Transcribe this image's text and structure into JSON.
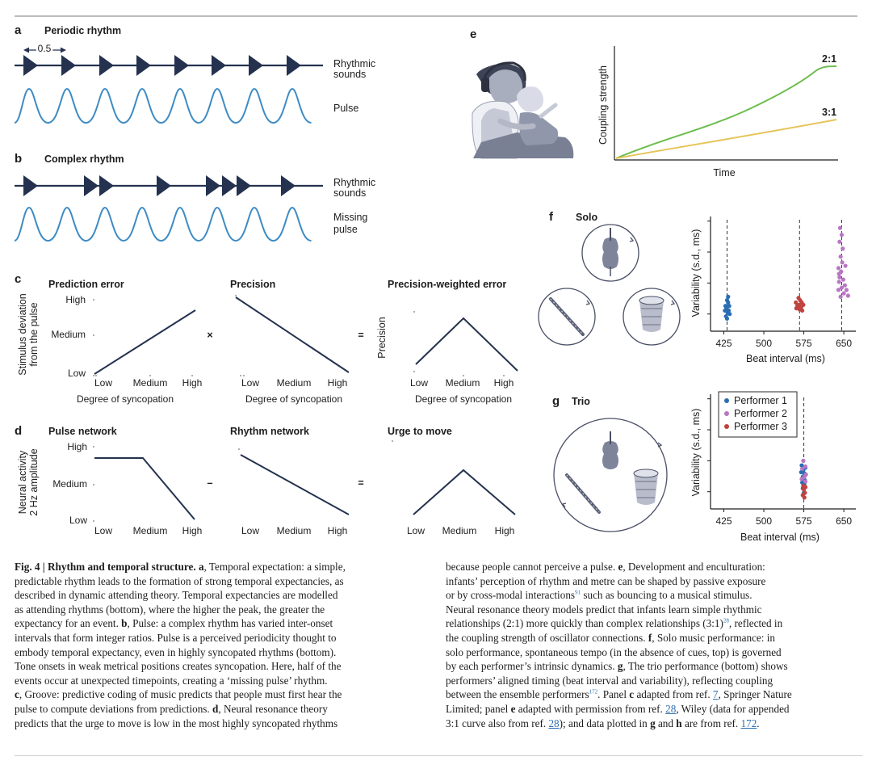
{
  "panels": {
    "a": {
      "letter": "a",
      "title": "Periodic rhythm",
      "interval": "0.5",
      "sounds_label_1": "Rhythmic",
      "sounds_label_2": "sounds",
      "pulse_label": "Pulse"
    },
    "b": {
      "letter": "b",
      "title": "Complex rhythm",
      "sounds_label_1": "Rhythmic",
      "sounds_label_2": "sounds",
      "pulse_label_1": "Missing",
      "pulse_label_2": "pulse"
    },
    "c": {
      "letter": "c",
      "ylabel_1": "Stimulus deviation",
      "ylabel_2": "from the pulse",
      "titles": [
        "Prediction error",
        "Precision",
        "Precision-weighted error"
      ],
      "yticks": [
        "High",
        "Medium",
        "Low"
      ],
      "xticks": [
        "Low",
        "Medium",
        "High"
      ],
      "xlabel": "Degree of syncopation",
      "ylabel_3": "Precision",
      "op1": "×",
      "op2": "="
    },
    "d": {
      "letter": "d",
      "ylabel_1": "Neural activity",
      "ylabel_2": "2 Hz amplitude",
      "titles": [
        "Pulse network",
        "Rhythm network",
        "Urge to move"
      ],
      "yticks": [
        "High",
        "Medium",
        "Low"
      ],
      "xticks": [
        "Low",
        "Medium",
        "High"
      ],
      "op1": "–",
      "op2": "="
    },
    "e": {
      "letter": "e",
      "ylabel": "Coupling strength",
      "xlabel": "Time",
      "curve_labels": [
        "2:1",
        "3:1"
      ]
    },
    "f": {
      "letter": "f",
      "title": "Solo",
      "ylabel": "Variability (s.d., ms)",
      "xlabel": "Beat interval (ms)"
    },
    "g": {
      "letter": "g",
      "title": "Trio",
      "ylabel": "Variability (s.d., ms)",
      "xlabel": "Beat interval (ms)",
      "legend": [
        "Performer 1",
        "Performer 2",
        "Performer 3"
      ]
    }
  },
  "chart_data": [
    {
      "panel": "e",
      "type": "line",
      "xlabel": "Time",
      "ylabel": "Coupling strength",
      "series": [
        {
          "name": "2:1",
          "color": "#6cbd4f"
        },
        {
          "name": "3:1",
          "color": "#e6c45a"
        }
      ]
    },
    {
      "panel": "f",
      "type": "scatter",
      "xlabel": "Beat interval (ms)",
      "ylabel": "Variability (s.d., ms)",
      "xticks": [
        "425",
        "500",
        "575",
        "650"
      ],
      "xlim": [
        400,
        665
      ],
      "ylim": [
        0,
        1
      ],
      "series": [
        {
          "color": "#2a6db2",
          "points": [
            [
              431,
              0.27
            ],
            [
              433,
              0.25
            ],
            [
              428,
              0.22
            ],
            [
              435,
              0.22
            ],
            [
              430,
              0.2
            ],
            [
              434,
              0.18
            ],
            [
              427,
              0.18
            ],
            [
              432,
              0.16
            ],
            [
              436,
              0.15
            ],
            [
              429,
              0.13
            ],
            [
              431,
              0.11
            ],
            [
              433,
              0.3
            ]
          ]
        },
        {
          "color": "#c0433f",
          "points": [
            [
              565,
              0.29
            ],
            [
              568,
              0.27
            ],
            [
              560,
              0.25
            ],
            [
              571,
              0.25
            ],
            [
              566,
              0.23
            ],
            [
              563,
              0.22
            ],
            [
              570,
              0.21
            ],
            [
              574,
              0.23
            ],
            [
              561,
              0.2
            ],
            [
              567,
              0.19
            ],
            [
              572,
              0.18
            ]
          ]
        },
        {
          "color": "#b877c4",
          "points": [
            [
              643,
              0.9
            ],
            [
              646,
              0.84
            ],
            [
              642,
              0.78
            ],
            [
              648,
              0.72
            ],
            [
              644,
              0.65
            ],
            [
              647,
              0.6
            ],
            [
              640,
              0.55
            ],
            [
              645,
              0.52
            ],
            [
              642,
              0.47
            ],
            [
              649,
              0.45
            ],
            [
              641,
              0.43
            ],
            [
              652,
              0.4
            ],
            [
              646,
              0.38
            ],
            [
              640,
              0.36
            ],
            [
              655,
              0.36
            ],
            [
              650,
              0.33
            ],
            [
              644,
              0.3
            ],
            [
              658,
              0.31
            ],
            [
              641,
              0.5
            ],
            [
              653,
              0.57
            ]
          ]
        }
      ]
    },
    {
      "panel": "g",
      "type": "scatter",
      "xlabel": "Beat interval (ms)",
      "ylabel": "Variability (s.d., ms)",
      "xticks": [
        "425",
        "500",
        "575",
        "650"
      ],
      "xlim": [
        400,
        665
      ],
      "ylim": [
        0,
        1
      ],
      "series": [
        {
          "name": "Performer 1",
          "color": "#2a6db2",
          "points": [
            [
              571,
              0.38
            ],
            [
              574,
              0.34
            ],
            [
              576,
              0.31
            ],
            [
              573,
              0.28
            ],
            [
              577,
              0.25
            ],
            [
              572,
              0.23
            ],
            [
              575,
              0.2
            ],
            [
              578,
              0.36
            ],
            [
              570,
              0.32
            ],
            [
              574,
              0.27
            ],
            [
              576,
              0.22
            ],
            [
              573,
              0.18
            ],
            [
              575,
              0.14
            ]
          ]
        },
        {
          "name": "Performer 2",
          "color": "#b877c4",
          "points": [
            [
              574,
              0.42
            ],
            [
              578,
              0.37
            ],
            [
              572,
              0.35
            ],
            [
              579,
              0.3
            ],
            [
              576,
              0.28
            ],
            [
              571,
              0.26
            ],
            [
              578,
              0.24
            ]
          ]
        },
        {
          "name": "Performer 3",
          "color": "#c0433f",
          "points": [
            [
              575,
              0.17
            ],
            [
              577,
              0.14
            ],
            [
              573,
              0.12
            ],
            [
              576,
              0.1
            ],
            [
              578,
              0.19
            ],
            [
              574,
              0.2
            ]
          ]
        }
      ]
    }
  ],
  "caption": {
    "left": [
      "[[b:Fig. 4 | Rhythm and temporal structure.]] [[b:a]], Temporal expectation: a simple,",
      "predictable rhythm leads to the formation of strong temporal expectancies, as",
      "described in dynamic attending theory. Temporal expectancies are modelled",
      "as attending rhythms (bottom), where the higher the peak, the greater the",
      "expectancy for an event. [[b:b]], Pulse: a complex rhythm has varied inter-onset",
      "intervals that form integer ratios. Pulse is a perceived periodicity thought to",
      "embody temporal expectancy, even in highly syncopated rhythms (bottom).",
      "Tone onsets in weak metrical positions creates syncopation. Here, half of the",
      "events occur at unexpected timepoints, creating a ‘missing pulse’ rhythm.",
      "[[b:c]], Groove: predictive coding of music predicts that people must first hear the",
      "pulse to compute deviations from predictions. [[b:d]], Neural resonance theory",
      "predicts that the urge to move is low in the most highly syncopated rhythms"
    ],
    "right": [
      "because people cannot perceive a pulse. [[b:e]], Development and enculturation:",
      "infants’ perception of rhythm and metre can be shaped by passive exposure",
      "or by cross-modal interactions[[sup:91]] such as bouncing to a musical stimulus.",
      "Neural resonance theory models predict that infants learn simple rhythmic",
      "relationships (2:1) more quickly than complex relationships (3:1)[[sup:28]], reflected in",
      "the coupling strength of oscillator connections. [[b:f]], Solo music performance: in",
      "solo performance, spontaneous tempo (in the absence of cues, top) is governed",
      "by each performer’s intrinsic dynamics. [[b:g]], The trio performance (bottom) shows",
      "performers’ aligned timing (beat interval and variability), reflecting coupling",
      "between the ensemble performers[[sup:172]]. Panel [[b:c]] adapted from ref. [[a:7]], Springer Nature",
      "Limited; panel [[b:e]] adapted with permission from ref. [[a:28]], Wiley (data for appended",
      "3:1 curve also from ref. [[a:28]]); and data plotted in [[b:g]] and [[b:h]] are from ref. [[a:172]]."
    ]
  }
}
